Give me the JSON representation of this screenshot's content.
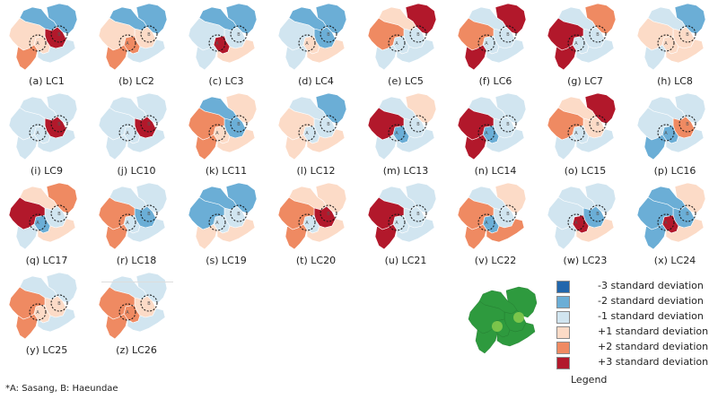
{
  "figure": {
    "panels": [
      {
        "caption": "(a)  LC1",
        "colors": [
          2,
          2,
          6,
          4,
          4,
          5,
          3
        ]
      },
      {
        "caption": "(b)  LC2",
        "colors": [
          2,
          2,
          4,
          5,
          4,
          5,
          3
        ]
      },
      {
        "caption": "(c)  LC3",
        "colors": [
          2,
          2,
          3,
          6,
          3,
          3,
          4
        ]
      },
      {
        "caption": "(d)  LC4",
        "colors": [
          2,
          2,
          2,
          4,
          3,
          3,
          4
        ]
      },
      {
        "caption": "(e)  LC5",
        "colors": [
          6,
          4,
          3,
          3,
          5,
          3,
          3
        ]
      },
      {
        "caption": "(f)  LC6",
        "colors": [
          6,
          3,
          3,
          3,
          5,
          6,
          3
        ]
      },
      {
        "caption": "(g)  LC7",
        "colors": [
          5,
          3,
          3,
          3,
          6,
          6,
          3
        ]
      },
      {
        "caption": "(h)  LC8",
        "colors": [
          2,
          3,
          4,
          4,
          4,
          3,
          4
        ]
      },
      {
        "caption": "(i)  LC9",
        "colors": [
          3,
          3,
          6,
          3,
          3,
          3,
          3
        ]
      },
      {
        "caption": "(j)  LC10",
        "colors": [
          3,
          3,
          6,
          3,
          3,
          3,
          3
        ]
      },
      {
        "caption": "(k)  LC11",
        "colors": [
          4,
          2,
          2,
          4,
          5,
          5,
          4
        ]
      },
      {
        "caption": "(l)  LC12",
        "colors": [
          2,
          3,
          3,
          3,
          4,
          4,
          4
        ]
      },
      {
        "caption": "(m)  LC13",
        "colors": [
          4,
          3,
          3,
          2,
          6,
          3,
          3
        ]
      },
      {
        "caption": "(n)  LC14",
        "colors": [
          3,
          3,
          3,
          2,
          6,
          6,
          3
        ]
      },
      {
        "caption": "(o)  LC15",
        "colors": [
          6,
          4,
          4,
          3,
          5,
          3,
          3
        ]
      },
      {
        "caption": "(p)  LC16",
        "colors": [
          3,
          3,
          5,
          2,
          3,
          2,
          3
        ]
      },
      {
        "caption": "(q)  LC17",
        "colors": [
          5,
          4,
          3,
          2,
          6,
          3,
          4
        ]
      },
      {
        "caption": "(r)  LC18",
        "colors": [
          3,
          3,
          2,
          3,
          5,
          5,
          3
        ]
      },
      {
        "caption": "(s)  LC19",
        "colors": [
          2,
          2,
          3,
          3,
          2,
          4,
          4
        ]
      },
      {
        "caption": "(t)  LC20",
        "colors": [
          4,
          4,
          6,
          3,
          5,
          5,
          4
        ]
      },
      {
        "caption": "(u)  LC21",
        "colors": [
          3,
          3,
          3,
          3,
          6,
          6,
          3
        ]
      },
      {
        "caption": "(v)  LC22",
        "colors": [
          4,
          3,
          3,
          2,
          5,
          5,
          5
        ]
      },
      {
        "caption": "(w)  LC23",
        "colors": [
          3,
          3,
          2,
          6,
          3,
          3,
          4
        ]
      },
      {
        "caption": "(x)  LC24",
        "colors": [
          4,
          2,
          2,
          6,
          2,
          2,
          4
        ]
      },
      {
        "caption": "(y)  LC25",
        "colors": [
          3,
          3,
          4,
          4,
          5,
          5,
          3
        ]
      },
      {
        "caption": "(z)  LC26",
        "colors": [
          3,
          3,
          4,
          5,
          5,
          5,
          3
        ]
      }
    ],
    "circle_labels": {
      "a": "A",
      "b": "B"
    },
    "palette": [
      "#2166ac",
      "#6baed6",
      "#d1e5f0",
      "#fcdbc7",
      "#ef8a62",
      "#b2182b"
    ],
    "legend": {
      "title": "Legend",
      "items": [
        {
          "label": "-3  standard  deviation",
          "color": "#2166ac"
        },
        {
          "label": "-2  standard  deviation",
          "color": "#6baed6"
        },
        {
          "label": "-1  standard  deviation",
          "color": "#d1e5f0"
        },
        {
          "label": "+1  standard  deviation",
          "color": "#fcdbc7"
        },
        {
          "label": "+2  standard  deviation",
          "color": "#ef8a62"
        },
        {
          "label": "+3  standard  deviation",
          "color": "#b2182b"
        }
      ]
    },
    "mini_map": {
      "land_color": "#2e9a3e",
      "highlight_color": "#8fcf4f"
    },
    "footnote": "*A:  Sasang,  B:  Haeundae"
  }
}
